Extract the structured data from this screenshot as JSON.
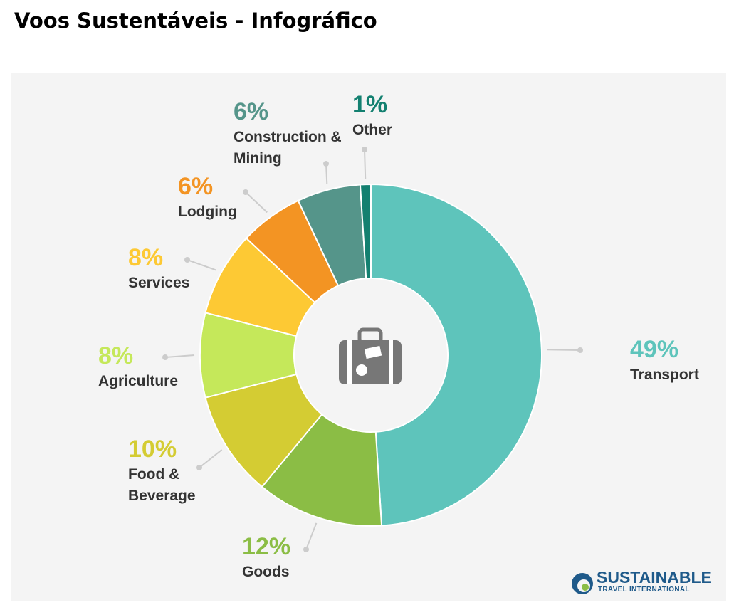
{
  "chart_data": {
    "type": "pie",
    "donut": true,
    "title": "Voos Sustentáveis - Infográfico",
    "categories": [
      "Transport",
      "Goods",
      "Food & Beverage",
      "Agriculture",
      "Services",
      "Lodging",
      "Construction & Mining",
      "Other"
    ],
    "values": [
      49,
      12,
      10,
      8,
      8,
      6,
      6,
      1
    ],
    "value_labels": [
      "49%",
      "12%",
      "10%",
      "8%",
      "8%",
      "6%",
      "6%",
      "1%"
    ],
    "colors": [
      "#5ec4bb",
      "#8bbd45",
      "#d4cc33",
      "#c5e85a",
      "#fdc934",
      "#f39423",
      "#55958a",
      "#138070"
    ],
    "logo": {
      "name": "SUSTAINABLE",
      "subtitle": "TRAVEL INTERNATIONAL"
    }
  }
}
